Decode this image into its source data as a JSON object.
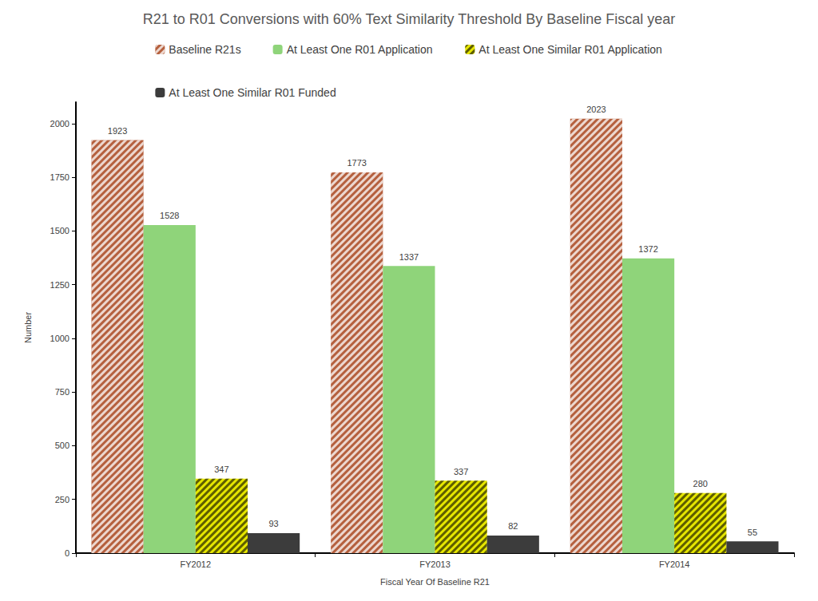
{
  "chart_data": {
    "type": "bar",
    "title": "R21 to R01 Conversions with 60% Text Similarity Threshold By Baseline Fiscal year",
    "x_label": "Fiscal Year Of Baseline R21",
    "y_label": "Number",
    "categories": [
      "FY2012",
      "FY2013",
      "FY2014"
    ],
    "series": [
      {
        "name": "Baseline R21s",
        "color": "#b5603e",
        "values": [
          1923,
          1773,
          2023
        ]
      },
      {
        "name": "At Least One R01 Application",
        "color": "#8fd47a",
        "values": [
          1528,
          1337,
          1372
        ]
      },
      {
        "name": "At Least One Similar R01 Application",
        "color": "#e6e600",
        "values": [
          347,
          337,
          280
        ]
      },
      {
        "name": "At Least One Similar R01 Funded",
        "color": "#3c3c3c",
        "values": [
          93,
          82,
          55
        ]
      }
    ],
    "ylim": [
      0,
      2100
    ],
    "yticks": [
      0,
      250,
      500,
      750,
      1000,
      1250,
      1500,
      1750,
      2000
    ],
    "grid": false,
    "legend": "top",
    "data_labels": true
  }
}
